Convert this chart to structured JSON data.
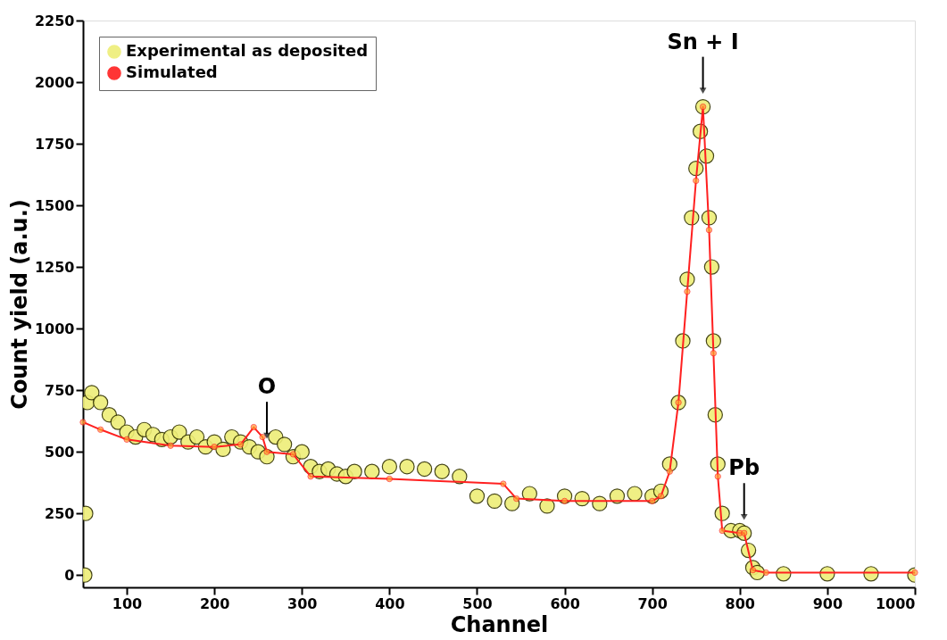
{
  "chart_data": {
    "type": "scatter",
    "xlabel": "Channel",
    "ylabel": "Count yield (a.u.)",
    "xlim": [
      50,
      1000
    ],
    "xticks": [
      100,
      200,
      300,
      400,
      500,
      600,
      700,
      800,
      900,
      1000
    ],
    "ylim": [
      -50,
      2250
    ],
    "yticks": [
      0,
      250,
      500,
      750,
      1000,
      1250,
      1500,
      1750,
      2000,
      2250
    ],
    "grid": false,
    "legend": "top left",
    "marker": "circle",
    "series": [
      {
        "name": "Experimental as deposited",
        "type": "scatter",
        "color": "#eeee77",
        "x": [
          52,
          53,
          55,
          60,
          70,
          80,
          90,
          100,
          110,
          120,
          130,
          140,
          150,
          160,
          170,
          180,
          190,
          200,
          210,
          220,
          230,
          240,
          250,
          260,
          270,
          280,
          290,
          300,
          310,
          320,
          330,
          340,
          350,
          360,
          380,
          400,
          420,
          440,
          460,
          480,
          500,
          520,
          540,
          560,
          580,
          600,
          620,
          640,
          660,
          680,
          700,
          710,
          720,
          730,
          735,
          740,
          745,
          750,
          755,
          758,
          762,
          765,
          768,
          770,
          772,
          775,
          780,
          790,
          800,
          805,
          810,
          815,
          820,
          850,
          900,
          950,
          1000
        ],
        "values": [
          0,
          250,
          700,
          740,
          700,
          650,
          620,
          580,
          560,
          590,
          570,
          550,
          560,
          580,
          540,
          560,
          520,
          540,
          510,
          560,
          540,
          520,
          500,
          480,
          560,
          530,
          480,
          500,
          440,
          420,
          430,
          410,
          400,
          420,
          420,
          440,
          440,
          430,
          420,
          400,
          320,
          300,
          290,
          330,
          280,
          320,
          310,
          290,
          320,
          330,
          320,
          340,
          450,
          700,
          950,
          1200,
          1450,
          1650,
          1800,
          1900,
          1700,
          1450,
          1250,
          950,
          650,
          450,
          250,
          180,
          180,
          170,
          100,
          30,
          10,
          5,
          5,
          5,
          0
        ]
      },
      {
        "name": "Simulated",
        "type": "line",
        "color": "#ff2020",
        "x": [
          50,
          70,
          100,
          150,
          200,
          230,
          245,
          255,
          260,
          290,
          310,
          400,
          530,
          545,
          600,
          700,
          710,
          720,
          730,
          740,
          750,
          758,
          765,
          770,
          775,
          780,
          800,
          805,
          815,
          830,
          1000
        ],
        "values": [
          620,
          590,
          550,
          525,
          520,
          530,
          600,
          560,
          500,
          490,
          400,
          390,
          370,
          310,
          300,
          300,
          320,
          420,
          700,
          1150,
          1600,
          1900,
          1400,
          900,
          400,
          180,
          170,
          170,
          20,
          10,
          10
        ]
      }
    ],
    "annotations": [
      {
        "text": "O",
        "x": 260,
        "y": 500
      },
      {
        "text": "Sn + I",
        "x": 758,
        "y": 1900
      },
      {
        "text": "Pb",
        "x": 805,
        "y": 170
      }
    ]
  }
}
